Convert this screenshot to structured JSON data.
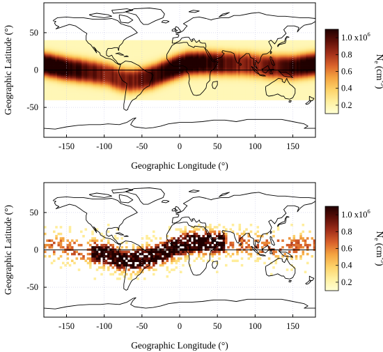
{
  "colors": {
    "scale": [
      "#ffffd4",
      "#fff0a0",
      "#fdd36a",
      "#f4a340",
      "#d9622b",
      "#a3301a",
      "#5e0f08",
      "#200000"
    ],
    "coast": "#000000",
    "equator": "#000000"
  },
  "chart_data": [
    {
      "type": "heatmap",
      "xlabel": "Geographic Longitude (°)",
      "ylabel": "Geographic Latitude (°)",
      "xlim": [
        -180,
        180
      ],
      "ylim": [
        -90,
        90
      ],
      "xticks": [
        "-150",
        "-100",
        "-50",
        "0",
        "50",
        "100",
        "150"
      ],
      "yticks": [
        "50",
        "0",
        "-50"
      ],
      "lat_coverage": [
        -40,
        40
      ],
      "grid": true,
      "colorbar": {
        "label_main": "N",
        "label_sub": "e",
        "label_units": " (cm",
        "label_exp": "-3",
        "label_close": ")",
        "ticks": [
          "0.2",
          "0.4",
          "0.6",
          "0.8",
          "1.0 x10"
        ],
        "tick_values": [
          0.2,
          0.4,
          0.6,
          0.8,
          1.0
        ],
        "top_exp": "6",
        "min": 0.1,
        "max": 1.1
      },
      "field": {
        "kind": "smooth_model",
        "equatorial_anomaly_crest_offset_deg": 13,
        "peak_density": 1.0,
        "background_density": 0.12
      }
    },
    {
      "type": "heatmap",
      "xlabel": "Geographic Longitude (°)",
      "ylabel": "Geographic Latitude (°)",
      "xlim": [
        -180,
        180
      ],
      "ylim": [
        -90,
        90
      ],
      "xticks": [
        "-150",
        "-100",
        "-50",
        "0",
        "50",
        "100",
        "150"
      ],
      "yticks": [
        "50",
        "0",
        "-50"
      ],
      "lat_coverage": [
        -40,
        40
      ],
      "grid": true,
      "colorbar": {
        "label_main": "N",
        "label_sub": "e",
        "label_units": " (cm",
        "label_exp": "-3",
        "label_close": ")",
        "ticks": [
          "0.2",
          "0.4",
          "0.6",
          "0.8",
          "1.0 x10"
        ],
        "tick_values": [
          0.2,
          0.4,
          0.6,
          0.8,
          1.0
        ],
        "top_exp": "6",
        "min": 0.1,
        "max": 1.1
      },
      "field": {
        "kind": "sparse_observations",
        "equatorial_anomaly_crest_offset_deg": 13,
        "peak_density": 1.0,
        "dense_longitudes": [
          -60,
          60
        ]
      }
    }
  ]
}
